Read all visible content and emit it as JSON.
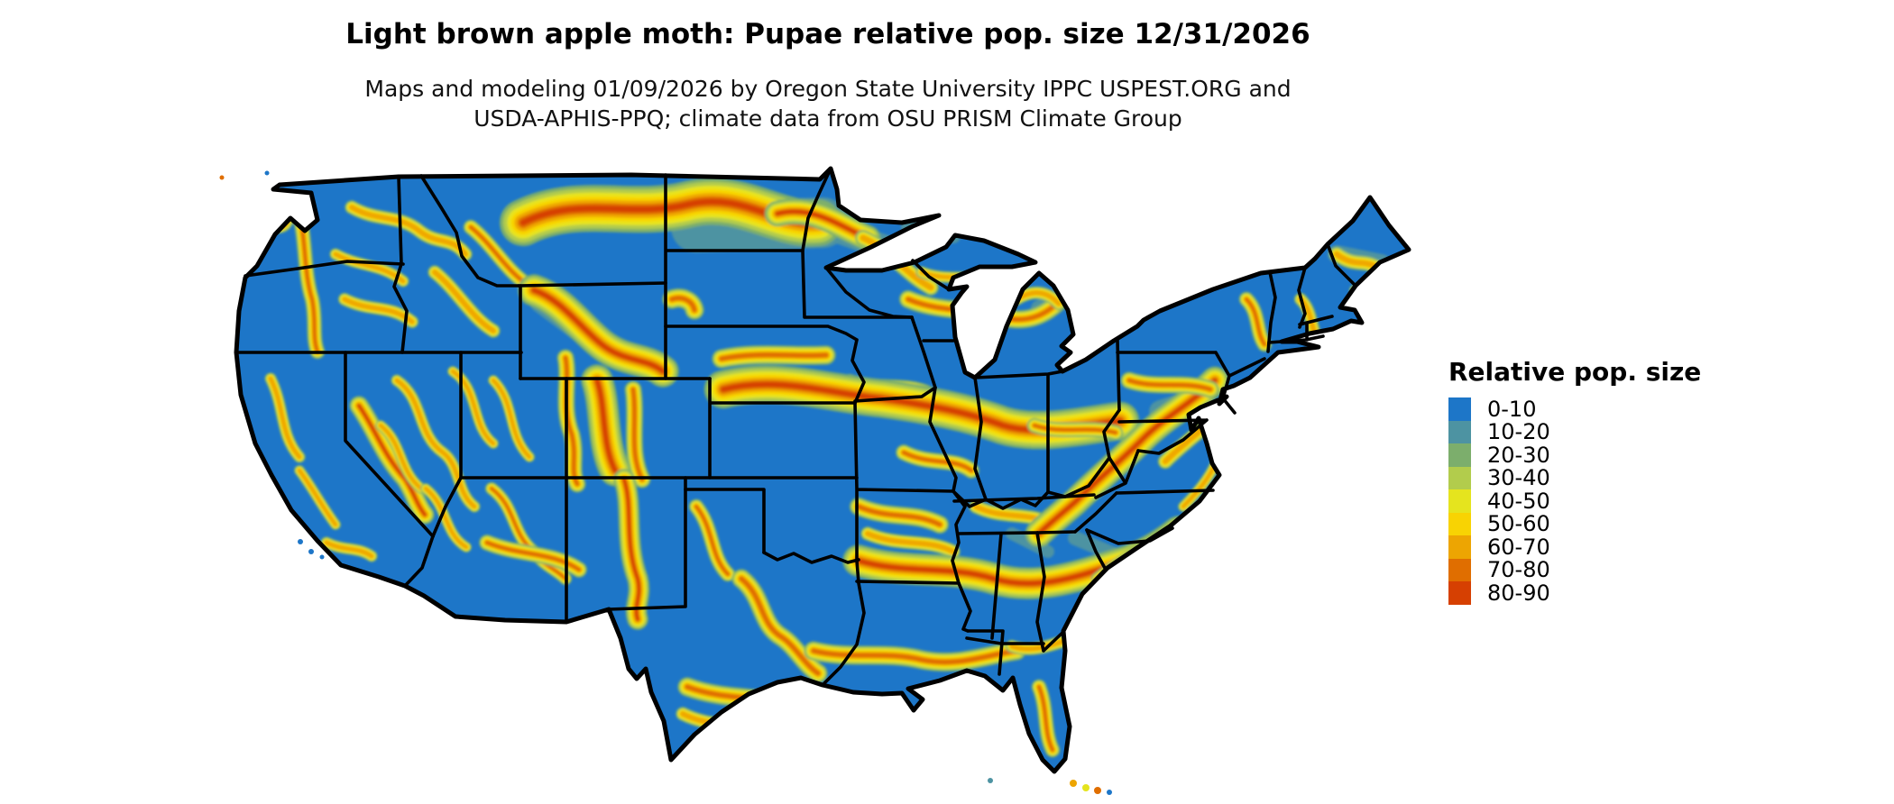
{
  "title": "Light brown apple moth: Pupae relative pop. size 12/31/2026",
  "subtitle": {
    "line1": "Maps and modeling 01/09/2026 by Oregon State University IPPC USPEST.ORG and",
    "line2": "USDA-APHIS-PPQ; climate data from OSU PRISM Climate Group"
  },
  "map": {
    "region": "Continental United States",
    "base_color": "#1d76c8",
    "border_color": "#000000",
    "water_color": "#ffffff"
  },
  "legend": {
    "title": "Relative pop. size",
    "items": [
      {
        "label": "0-10",
        "color": "#1d76c8"
      },
      {
        "label": "10-20",
        "color": "#4d93a2"
      },
      {
        "label": "20-30",
        "color": "#7cae6c"
      },
      {
        "label": "30-40",
        "color": "#b2cc4c"
      },
      {
        "label": "40-50",
        "color": "#e5e41e"
      },
      {
        "label": "50-60",
        "color": "#f8d303"
      },
      {
        "label": "60-70",
        "color": "#eda502"
      },
      {
        "label": "70-80",
        "color": "#e06e00"
      },
      {
        "label": "80-90",
        "color": "#d64002"
      }
    ]
  }
}
